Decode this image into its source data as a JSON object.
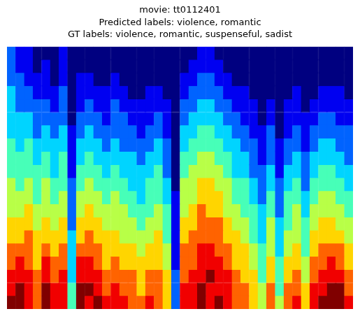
{
  "chart_data": {
    "type": "heatmap",
    "title": [
      "movie: tt0112401",
      "Predicted labels: violence, romantic",
      "GT labels: violence, romantic, suspenseful, sadist"
    ],
    "tick_labels": false,
    "zlim": [
      0,
      9
    ],
    "cells": [
      [
        2,
        2,
        2,
        3,
        3,
        3,
        3,
        4,
        4,
        4,
        5,
        5,
        5,
        6,
        6,
        7,
        7,
        8,
        8,
        9
      ],
      [
        1,
        1,
        2,
        2,
        2,
        3,
        3,
        3,
        4,
        4,
        4,
        5,
        5,
        6,
        6,
        7,
        8,
        8,
        9,
        9
      ],
      [
        1,
        1,
        1,
        2,
        2,
        3,
        3,
        4,
        4,
        4,
        5,
        5,
        6,
        6,
        7,
        7,
        7,
        8,
        8,
        8
      ],
      [
        0,
        0,
        1,
        1,
        2,
        2,
        2,
        3,
        3,
        4,
        4,
        4,
        5,
        5,
        6,
        6,
        6,
        7,
        7,
        7
      ],
      [
        0,
        1,
        1,
        1,
        2,
        2,
        3,
        3,
        4,
        4,
        5,
        5,
        5,
        6,
        6,
        7,
        8,
        8,
        9,
        9
      ],
      [
        0,
        0,
        0,
        1,
        1,
        2,
        2,
        3,
        3,
        3,
        4,
        4,
        5,
        5,
        6,
        6,
        7,
        7,
        8,
        8
      ],
      [
        1,
        1,
        1,
        2,
        2,
        2,
        3,
        3,
        4,
        4,
        4,
        5,
        5,
        6,
        6,
        7,
        7,
        8,
        8,
        8
      ],
      [
        0,
        0,
        0,
        0,
        0,
        0,
        1,
        1,
        1,
        1,
        2,
        2,
        2,
        2,
        3,
        3,
        3,
        3,
        4,
        4
      ],
      [
        0,
        0,
        1,
        1,
        1,
        2,
        2,
        3,
        3,
        4,
        4,
        5,
        5,
        6,
        6,
        7,
        8,
        8,
        9,
        9
      ],
      [
        0,
        0,
        1,
        1,
        2,
        2,
        3,
        3,
        4,
        4,
        5,
        5,
        6,
        6,
        7,
        7,
        8,
        8,
        9,
        8
      ],
      [
        0,
        0,
        0,
        1,
        1,
        2,
        2,
        3,
        3,
        4,
        4,
        5,
        5,
        6,
        6,
        7,
        7,
        8,
        8,
        9
      ],
      [
        0,
        0,
        0,
        1,
        1,
        1,
        2,
        2,
        3,
        3,
        4,
        4,
        5,
        5,
        6,
        6,
        6,
        7,
        7,
        8
      ],
      [
        0,
        0,
        1,
        1,
        2,
        2,
        2,
        3,
        3,
        4,
        4,
        5,
        5,
        5,
        6,
        6,
        7,
        7,
        8,
        8
      ],
      [
        0,
        0,
        0,
        1,
        1,
        2,
        2,
        2,
        3,
        3,
        4,
        4,
        5,
        5,
        5,
        6,
        6,
        7,
        7,
        8
      ],
      [
        0,
        0,
        0,
        0,
        1,
        1,
        2,
        2,
        3,
        3,
        3,
        4,
        4,
        5,
        5,
        6,
        6,
        7,
        7,
        7
      ],
      [
        0,
        0,
        0,
        0,
        1,
        1,
        1,
        2,
        2,
        3,
        3,
        3,
        4,
        4,
        5,
        5,
        6,
        6,
        6,
        7
      ],
      [
        0,
        0,
        0,
        1,
        1,
        1,
        2,
        2,
        3,
        3,
        4,
        4,
        4,
        5,
        5,
        6,
        6,
        7,
        7,
        8
      ],
      [
        0,
        0,
        0,
        1,
        1,
        2,
        2,
        3,
        3,
        4,
        4,
        4,
        5,
        5,
        6,
        6,
        6,
        7,
        7,
        7
      ],
      [
        0,
        0,
        0,
        0,
        1,
        1,
        1,
        2,
        2,
        2,
        3,
        3,
        4,
        4,
        4,
        5,
        5,
        6,
        6,
        6
      ],
      [
        0,
        0,
        0,
        0,
        0,
        0,
        0,
        0,
        0,
        0,
        0,
        1,
        1,
        1,
        1,
        1,
        1,
        2,
        2,
        2
      ],
      [
        0,
        0,
        1,
        1,
        2,
        2,
        3,
        3,
        4,
        4,
        5,
        5,
        5,
        6,
        6,
        7,
        7,
        7,
        8,
        8
      ],
      [
        0,
        1,
        1,
        2,
        2,
        3,
        3,
        4,
        4,
        5,
        5,
        5,
        6,
        6,
        7,
        7,
        7,
        8,
        8,
        8
      ],
      [
        1,
        1,
        2,
        2,
        3,
        3,
        4,
        4,
        5,
        5,
        6,
        6,
        7,
        7,
        7,
        8,
        8,
        8,
        9,
        9
      ],
      [
        1,
        1,
        2,
        2,
        3,
        3,
        4,
        4,
        5,
        5,
        6,
        6,
        6,
        7,
        7,
        8,
        8,
        9,
        8,
        8
      ],
      [
        0,
        1,
        1,
        2,
        2,
        3,
        3,
        4,
        4,
        5,
        5,
        6,
        6,
        7,
        7,
        7,
        8,
        8,
        8,
        9
      ],
      [
        0,
        0,
        1,
        1,
        2,
        2,
        3,
        3,
        4,
        4,
        5,
        5,
        5,
        6,
        6,
        7,
        7,
        8,
        8,
        8
      ],
      [
        0,
        0,
        0,
        1,
        1,
        2,
        2,
        3,
        3,
        3,
        4,
        4,
        5,
        5,
        6,
        6,
        6,
        7,
        7,
        7
      ],
      [
        0,
        0,
        0,
        1,
        1,
        1,
        2,
        2,
        3,
        3,
        4,
        4,
        4,
        5,
        5,
        6,
        6,
        6,
        7,
        7
      ],
      [
        0,
        0,
        0,
        0,
        1,
        1,
        1,
        2,
        2,
        2,
        3,
        3,
        4,
        4,
        4,
        5,
        5,
        6,
        6,
        6
      ],
      [
        0,
        0,
        0,
        0,
        0,
        0,
        1,
        1,
        1,
        2,
        2,
        2,
        3,
        3,
        3,
        4,
        4,
        4,
        5,
        5
      ],
      [
        0,
        0,
        0,
        0,
        1,
        1,
        2,
        2,
        2,
        3,
        3,
        4,
        4,
        5,
        5,
        5,
        6,
        6,
        7,
        7
      ],
      [
        0,
        0,
        0,
        0,
        0,
        0,
        0,
        1,
        1,
        1,
        2,
        2,
        2,
        3,
        3,
        3,
        4,
        4,
        4,
        5
      ],
      [
        0,
        0,
        0,
        0,
        1,
        1,
        1,
        2,
        2,
        3,
        3,
        4,
        4,
        4,
        5,
        5,
        6,
        6,
        7,
        7
      ],
      [
        0,
        0,
        0,
        1,
        1,
        1,
        2,
        2,
        3,
        3,
        4,
        4,
        5,
        5,
        5,
        6,
        6,
        7,
        7,
        8
      ],
      [
        0,
        0,
        0,
        0,
        0,
        1,
        1,
        1,
        2,
        2,
        2,
        3,
        3,
        4,
        4,
        4,
        5,
        5,
        6,
        6
      ],
      [
        0,
        0,
        0,
        0,
        1,
        1,
        2,
        2,
        3,
        3,
        4,
        4,
        5,
        5,
        6,
        6,
        7,
        7,
        8,
        8
      ],
      [
        0,
        0,
        0,
        1,
        1,
        2,
        2,
        3,
        3,
        4,
        4,
        5,
        5,
        6,
        6,
        7,
        7,
        8,
        8,
        9
      ],
      [
        0,
        0,
        0,
        1,
        1,
        2,
        2,
        3,
        3,
        4,
        4,
        5,
        5,
        6,
        6,
        7,
        8,
        8,
        9,
        9
      ],
      [
        0,
        0,
        0,
        1,
        1,
        1,
        2,
        2,
        3,
        3,
        4,
        4,
        5,
        5,
        6,
        7,
        7,
        8,
        9,
        9
      ],
      [
        0,
        0,
        0,
        0,
        1,
        1,
        2,
        2,
        2,
        3,
        3,
        4,
        4,
        5,
        5,
        6,
        6,
        7,
        7,
        8
      ]
    ]
  }
}
